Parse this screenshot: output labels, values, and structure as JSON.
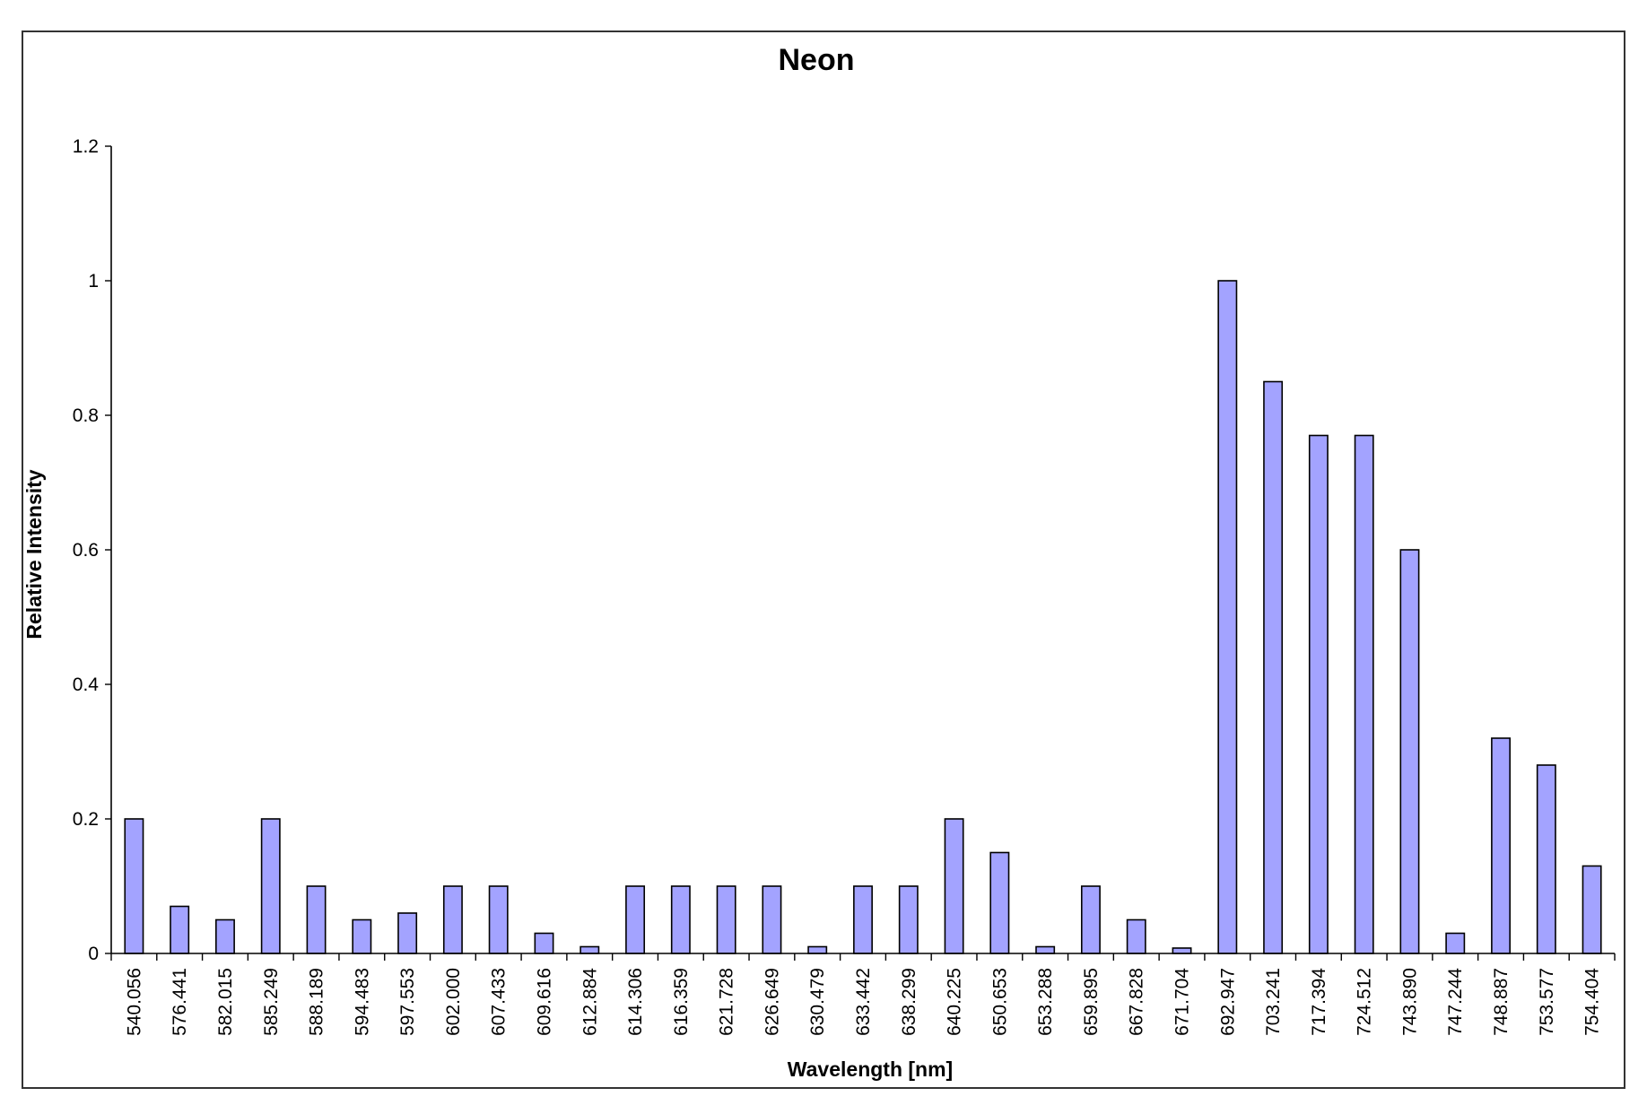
{
  "chart_data": {
    "type": "bar",
    "title": "Neon",
    "xlabel": "Wavelength [nm]",
    "ylabel": "Relative Intensity",
    "ylim": [
      0,
      1.2
    ],
    "yticks": [
      "0",
      "0.2",
      "0.4",
      "0.6",
      "0.8",
      "1",
      "1.2"
    ],
    "ytick_values": [
      0,
      0.2,
      0.4,
      0.6,
      0.8,
      1.0,
      1.2
    ],
    "grid": false,
    "legend": "none",
    "bar_color": "#a3a3ff",
    "categories": [
      "540.056",
      "576.441",
      "582.015",
      "585.249",
      "588.189",
      "594.483",
      "597.553",
      "602.000",
      "607.433",
      "609.616",
      "612.884",
      "614.306",
      "616.359",
      "621.728",
      "626.649",
      "630.479",
      "633.442",
      "638.299",
      "640.225",
      "650.653",
      "653.288",
      "659.895",
      "667.828",
      "671.704",
      "692.947",
      "703.241",
      "717.394",
      "724.512",
      "743.890",
      "747.244",
      "748.887",
      "753.577",
      "754.404"
    ],
    "values": [
      0.2,
      0.07,
      0.05,
      0.2,
      0.1,
      0.05,
      0.06,
      0.1,
      0.1,
      0.03,
      0.01,
      0.1,
      0.1,
      0.1,
      0.1,
      0.01,
      0.1,
      0.1,
      0.2,
      0.15,
      0.01,
      0.1,
      0.05,
      0.008,
      1.0,
      0.85,
      0.77,
      0.77,
      0.6,
      0.03,
      0.32,
      0.28,
      0.13
    ]
  }
}
